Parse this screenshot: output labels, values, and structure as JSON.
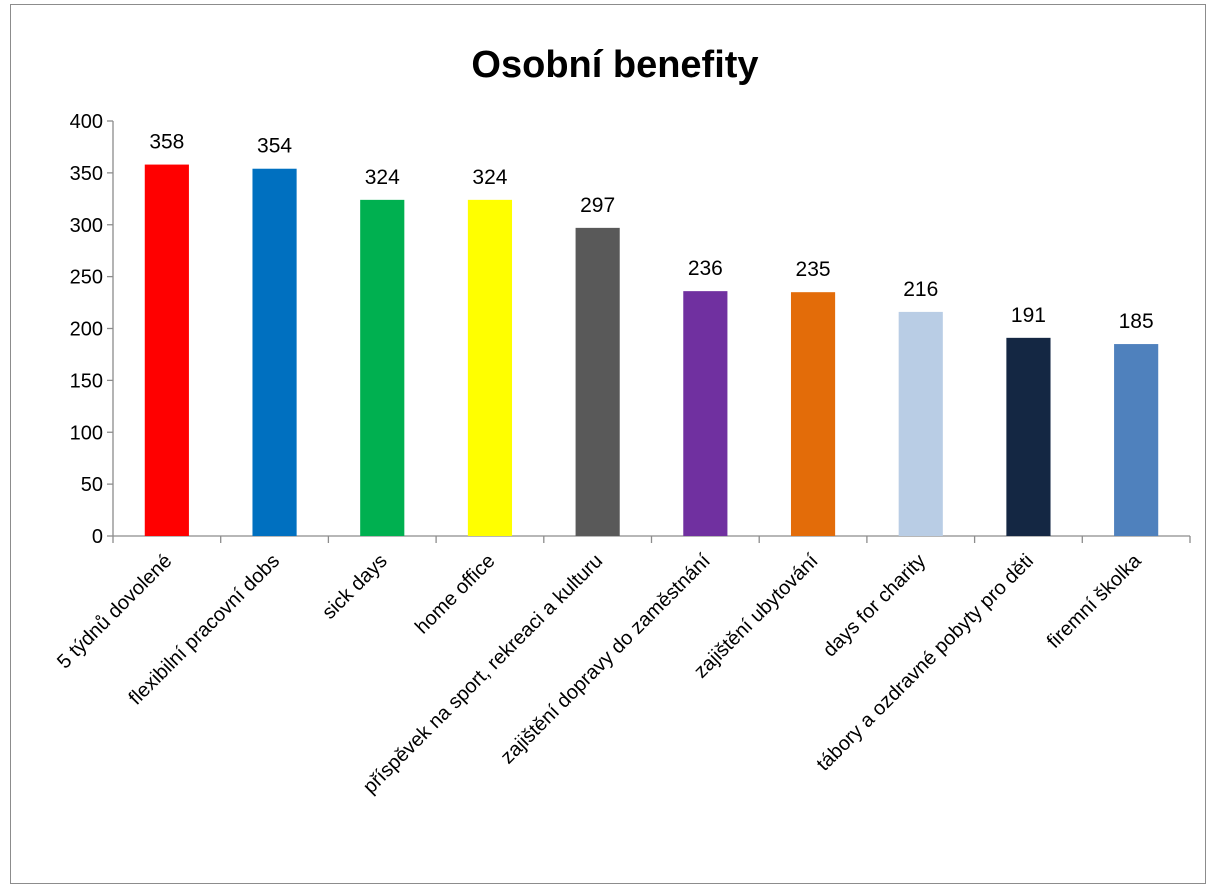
{
  "chart_data": {
    "type": "bar",
    "title": "Osobní benefity",
    "xlabel": "",
    "ylabel": "",
    "ylim": [
      0,
      400
    ],
    "yticks": [
      0,
      50,
      100,
      150,
      200,
      250,
      300,
      350,
      400
    ],
    "grid": false,
    "legend": "none",
    "categories": [
      "5 týdnů dovolené",
      "flexibilní pracovní dobs",
      "sick days",
      "home office",
      "příspěvek na sport, rekreaci a kulturu",
      "zajištění dopravy do zaměstnání",
      "zajištění ubytování",
      "days for charity",
      "tábory a ozdravné pobyty pro děti",
      "firemní školka"
    ],
    "values": [
      358,
      354,
      324,
      324,
      297,
      236,
      235,
      216,
      191,
      185
    ],
    "colors": [
      "#ff0000",
      "#0070c0",
      "#00b050",
      "#ffff00",
      "#595959",
      "#7030a0",
      "#e36c09",
      "#b9cde5",
      "#142743",
      "#4f81bd"
    ]
  }
}
